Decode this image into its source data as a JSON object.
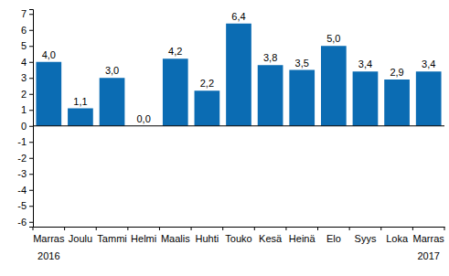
{
  "chart_data": {
    "type": "bar",
    "categories": [
      "Marras",
      "Joulu",
      "Tammi",
      "Helmi",
      "Maalis",
      "Huhti",
      "Touko",
      "Kesä",
      "Heinä",
      "Elo",
      "Syys",
      "Loka",
      "Marras"
    ],
    "values": [
      4.0,
      1.1,
      3.0,
      0.0,
      4.2,
      2.2,
      6.4,
      3.8,
      3.5,
      5.0,
      3.4,
      2.9,
      3.4
    ],
    "value_labels": [
      "4,0",
      "1,1",
      "3,0",
      "0,0",
      "4,2",
      "2,2",
      "6,4",
      "3,8",
      "3,5",
      "5,0",
      "3,4",
      "2,9",
      "3,4"
    ],
    "annotations": [
      "2016",
      "2017"
    ],
    "color": "#0b6cb3",
    "ylim": [
      -6.3,
      7.3
    ],
    "yticks": [
      -6,
      -5,
      -4,
      -3,
      -2,
      -1,
      0,
      1,
      2,
      3,
      4,
      5,
      6,
      7
    ],
    "grid": false,
    "data_labels": true
  }
}
